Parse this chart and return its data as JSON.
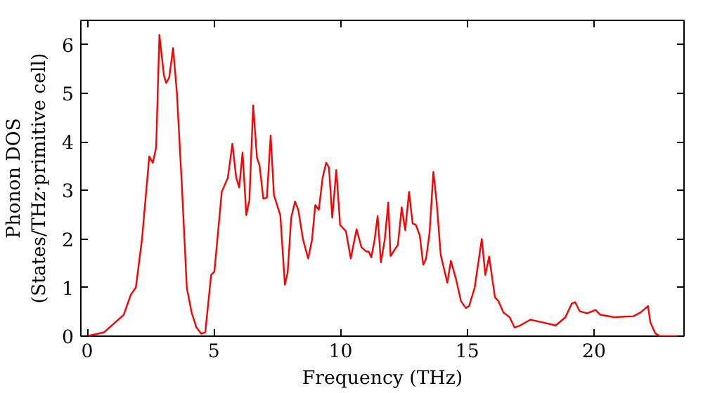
{
  "chart_data": {
    "type": "line",
    "xlabel": "Frequency (THz)",
    "ylabel": "Phonon DOS\n(States/THz·primitive cell)",
    "x": [
      -0.2,
      0.0,
      0.67,
      1.44,
      1.72,
      1.92,
      2.16,
      2.45,
      2.59,
      2.72,
      2.85,
      3.03,
      3.12,
      3.24,
      3.39,
      3.54,
      3.74,
      3.93,
      4.12,
      4.31,
      4.5,
      4.66,
      4.89,
      5.02,
      5.31,
      5.55,
      5.73,
      5.88,
      6.0,
      6.13,
      6.28,
      6.4,
      6.55,
      6.7,
      6.8,
      6.95,
      7.09,
      7.24,
      7.37,
      7.62,
      7.8,
      7.91,
      8.05,
      8.2,
      8.33,
      8.52,
      8.72,
      8.87,
      9.0,
      9.14,
      9.29,
      9.43,
      9.54,
      9.67,
      9.83,
      9.98,
      10.21,
      10.4,
      10.63,
      10.82,
      11.02,
      11.11,
      11.21,
      11.34,
      11.46,
      11.59,
      11.74,
      11.88,
      11.97,
      12.26,
      12.41,
      12.55,
      12.7,
      12.84,
      12.97,
      13.12,
      13.26,
      13.37,
      13.51,
      13.66,
      13.79,
      13.95,
      14.21,
      14.35,
      14.56,
      14.75,
      14.94,
      15.07,
      15.29,
      15.57,
      15.71,
      15.86,
      16.09,
      16.23,
      16.42,
      16.67,
      16.86,
      17.05,
      17.49,
      17.91,
      18.49,
      18.87,
      19.12,
      19.25,
      19.44,
      19.73,
      20.06,
      20.25,
      20.79,
      21.55,
      21.84,
      22.13,
      22.22,
      22.41,
      22.6,
      23.5
    ],
    "series": [
      {
        "color": "#ff0000",
        "values": [
          0,
          0,
          0.08,
          0.44,
          0.85,
          1.0,
          1.98,
          3.7,
          3.57,
          3.88,
          6.2,
          5.36,
          5.21,
          5.33,
          5.93,
          5.0,
          3.06,
          1.0,
          0.49,
          0.18,
          0.05,
          0.08,
          1.26,
          1.33,
          2.97,
          3.26,
          3.96,
          3.26,
          3.06,
          3.78,
          2.49,
          2.8,
          4.75,
          3.67,
          3.52,
          2.83,
          2.85,
          4.13,
          2.9,
          2.49,
          1.06,
          1.31,
          2.44,
          2.77,
          2.6,
          1.98,
          1.6,
          1.98,
          2.7,
          2.6,
          3.26,
          3.57,
          3.47,
          2.44,
          3.42,
          2.29,
          2.16,
          1.6,
          2.2,
          1.83,
          1.74,
          1.74,
          1.62,
          1.98,
          2.47,
          1.52,
          1.98,
          2.75,
          1.65,
          1.88,
          2.65,
          2.18,
          2.97,
          2.32,
          2.29,
          2.08,
          1.47,
          1.59,
          2.13,
          3.38,
          2.75,
          1.67,
          1.1,
          1.55,
          1.16,
          0.72,
          0.58,
          0.62,
          1.0,
          2.0,
          1.26,
          1.64,
          0.8,
          0.72,
          0.49,
          0.39,
          0.18,
          0.21,
          0.34,
          0.29,
          0.22,
          0.39,
          0.67,
          0.7,
          0.51,
          0.47,
          0.54,
          0.44,
          0.39,
          0.41,
          0.49,
          0.62,
          0.29,
          0.06,
          0,
          0
        ]
      }
    ],
    "xlim": [
      -0.25,
      23.55
    ],
    "ylim": [
      0,
      6.5
    ],
    "xticks": [
      0,
      5,
      10,
      15,
      20
    ],
    "yticks": [
      0,
      1,
      2,
      3,
      4,
      5,
      6
    ],
    "grid": false,
    "line_style": "solid",
    "marker": "none"
  }
}
